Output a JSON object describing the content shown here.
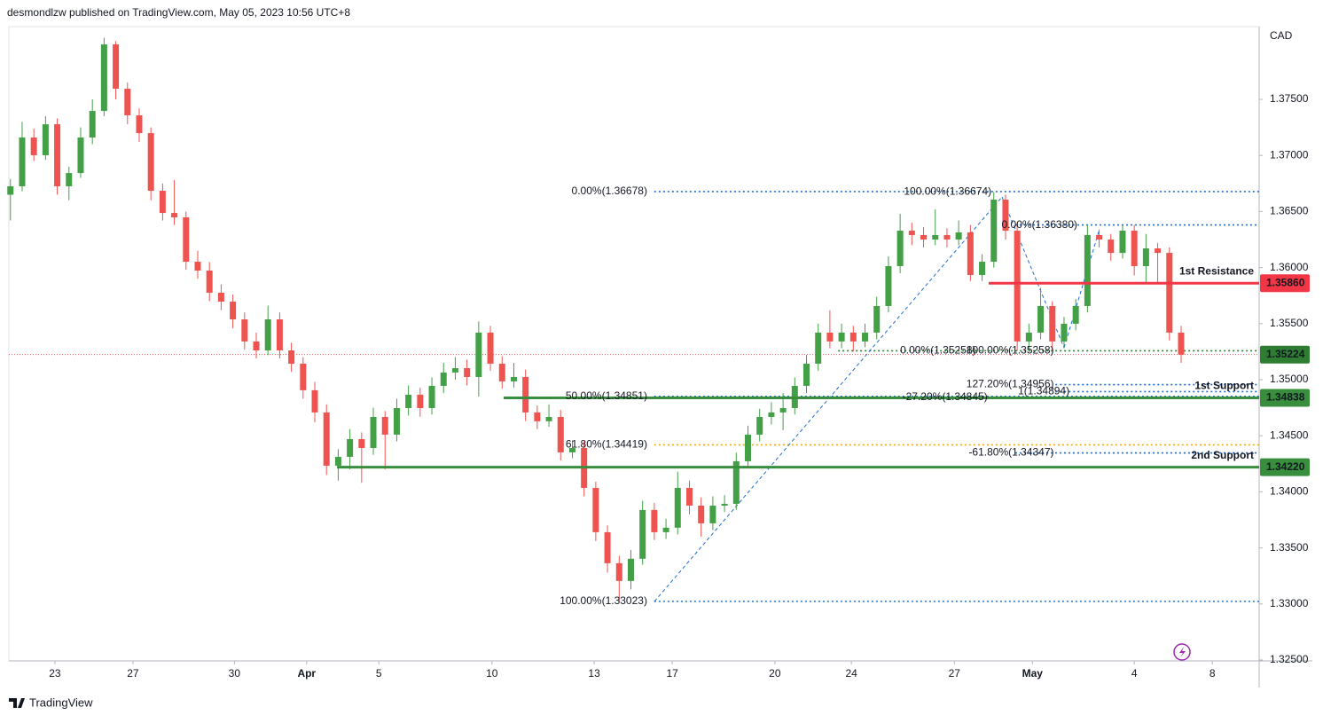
{
  "header": {
    "text": "desmondlzw published on TradingView.com, May 05, 2023 10:56 UTC+8"
  },
  "footer": {
    "brand": "TradingView"
  },
  "chart_data": {
    "type": "candlestick",
    "currency": "CAD",
    "up_color": "#43a047",
    "down_color": "#ef5350",
    "grid": false,
    "xlim": [
      -1.18,
      30.86
    ],
    "xticks": [
      {
        "value": 0,
        "label": "23"
      },
      {
        "value": 2,
        "label": "27"
      },
      {
        "value": 4.6,
        "label": "30"
      },
      {
        "value": 6.45,
        "label": "Apr"
      },
      {
        "value": 8.3,
        "label": "5"
      },
      {
        "value": 11.2,
        "label": "10"
      },
      {
        "value": 13.82,
        "label": "13"
      },
      {
        "value": 15.82,
        "label": "17"
      },
      {
        "value": 18.45,
        "label": "20"
      },
      {
        "value": 20.41,
        "label": "24"
      },
      {
        "value": 23.05,
        "label": "27"
      },
      {
        "value": 25.05,
        "label": "May"
      },
      {
        "value": 27.66,
        "label": "4"
      },
      {
        "value": 29.66,
        "label": "8"
      }
    ],
    "ylim": [
      1.32492,
      1.38149
    ],
    "yticks": [
      {
        "value": 1.325,
        "label": "1.32500"
      },
      {
        "value": 1.33,
        "label": "1.33000"
      },
      {
        "value": 1.335,
        "label": "1.33500"
      },
      {
        "value": 1.34,
        "label": "1.34000"
      },
      {
        "value": 1.345,
        "label": "1.34500"
      },
      {
        "value": 1.35,
        "label": "1.35000"
      },
      {
        "value": 1.355,
        "label": "1.35500"
      },
      {
        "value": 1.36,
        "label": "1.36000"
      },
      {
        "value": 1.365,
        "label": "1.36500"
      },
      {
        "value": 1.37,
        "label": "1.37000"
      },
      {
        "value": 1.375,
        "label": "1.37500"
      }
    ],
    "x": [
      -1.14,
      -0.84,
      -0.54,
      -0.24,
      0.06,
      0.36,
      0.66,
      0.96,
      1.26,
      1.56,
      1.86,
      2.16,
      2.46,
      2.76,
      3.06,
      3.36,
      3.66,
      3.96,
      4.26,
      4.56,
      4.86,
      5.16,
      5.46,
      5.76,
      6.06,
      6.36,
      6.66,
      6.96,
      7.26,
      7.56,
      7.86,
      8.16,
      8.46,
      8.76,
      9.06,
      9.36,
      9.66,
      9.96,
      10.26,
      10.56,
      10.86,
      11.16,
      11.46,
      11.76,
      12.06,
      12.36,
      12.66,
      12.96,
      13.26,
      13.56,
      13.86,
      14.16,
      14.46,
      14.76,
      15.06,
      15.36,
      15.66,
      15.96,
      16.26,
      16.56,
      16.86,
      17.16,
      17.46,
      17.76,
      18.06,
      18.36,
      18.66,
      18.96,
      19.26,
      19.56,
      19.86,
      20.16,
      20.46,
      20.76,
      21.06,
      21.36,
      21.66,
      21.96,
      22.26,
      22.56,
      22.86,
      23.16,
      23.46,
      23.76,
      24.06,
      24.36,
      24.66,
      24.96,
      25.26,
      25.56,
      25.86,
      26.16,
      26.46,
      26.76,
      27.06,
      27.36,
      27.66,
      27.96,
      28.26,
      28.56,
      28.86
    ],
    "candles": [
      [
        1.3665,
        1.3679,
        1.3642,
        1.36725
      ],
      [
        1.36725,
        1.373,
        1.3668,
        1.3716
      ],
      [
        1.3716,
        1.3724,
        1.3695,
        1.37002
      ],
      [
        1.37002,
        1.3735,
        1.3696,
        1.37278
      ],
      [
        1.37278,
        1.3733,
        1.3665,
        1.36725
      ],
      [
        1.36725,
        1.369,
        1.366,
        1.36843
      ],
      [
        1.36843,
        1.3725,
        1.368,
        1.3716
      ],
      [
        1.3716,
        1.375,
        1.371,
        1.37397
      ],
      [
        1.37397,
        1.3805,
        1.3735,
        1.3799
      ],
      [
        1.3799,
        1.3802,
        1.375,
        1.37595
      ],
      [
        1.37595,
        1.3765,
        1.3728,
        1.37358
      ],
      [
        1.37358,
        1.3742,
        1.3712,
        1.37199
      ],
      [
        1.37199,
        1.3725,
        1.366,
        1.36685
      ],
      [
        1.36685,
        1.3675,
        1.3642,
        1.36487
      ],
      [
        1.36487,
        1.3678,
        1.3638,
        1.36448
      ],
      [
        1.36448,
        1.365,
        1.3598,
        1.36052
      ],
      [
        1.36052,
        1.3615,
        1.359,
        1.35973
      ],
      [
        1.35973,
        1.3605,
        1.357,
        1.35776
      ],
      [
        1.35776,
        1.3585,
        1.3562,
        1.35696
      ],
      [
        1.35696,
        1.3576,
        1.3546,
        1.35538
      ],
      [
        1.35538,
        1.356,
        1.3527,
        1.35341
      ],
      [
        1.35341,
        1.3542,
        1.3519,
        1.35261
      ],
      [
        1.35261,
        1.3566,
        1.3522,
        1.35538
      ],
      [
        1.35538,
        1.356,
        1.3519,
        1.35261
      ],
      [
        1.35261,
        1.3533,
        1.3507,
        1.35143
      ],
      [
        1.35143,
        1.352,
        1.3483,
        1.34906
      ],
      [
        1.34906,
        1.3498,
        1.3462,
        1.34708
      ],
      [
        1.34708,
        1.3478,
        1.3415,
        1.34233
      ],
      [
        1.34233,
        1.3438,
        1.341,
        1.34312
      ],
      [
        1.34312,
        1.3456,
        1.342,
        1.3447
      ],
      [
        1.3447,
        1.3453,
        1.3408,
        1.34391
      ],
      [
        1.34391,
        1.3475,
        1.3433,
        1.34668
      ],
      [
        1.34668,
        1.3472,
        1.342,
        1.3451
      ],
      [
        1.3451,
        1.3483,
        1.3445,
        1.34747
      ],
      [
        1.34747,
        1.3495,
        1.3468,
        1.34866
      ],
      [
        1.34866,
        1.3493,
        1.3467,
        1.34747
      ],
      [
        1.34747,
        1.3502,
        1.3469,
        1.34945
      ],
      [
        1.34945,
        1.3515,
        1.3488,
        1.35064
      ],
      [
        1.35064,
        1.352,
        1.35,
        1.35103
      ],
      [
        1.35103,
        1.3518,
        1.3495,
        1.35024
      ],
      [
        1.35024,
        1.3552,
        1.3485,
        1.3542
      ],
      [
        1.3542,
        1.3548,
        1.3508,
        1.35143
      ],
      [
        1.35143,
        1.3521,
        1.3492,
        1.34985
      ],
      [
        1.34985,
        1.3515,
        1.3493,
        1.35024
      ],
      [
        1.35024,
        1.3509,
        1.3463,
        1.34708
      ],
      [
        1.34708,
        1.3477,
        1.3456,
        1.34629
      ],
      [
        1.34629,
        1.3478,
        1.3458,
        1.34668
      ],
      [
        1.34668,
        1.3473,
        1.3428,
        1.34352
      ],
      [
        1.34352,
        1.3446,
        1.343,
        1.34391
      ],
      [
        1.34391,
        1.3445,
        1.3396,
        1.34035
      ],
      [
        1.34035,
        1.3409,
        1.3356,
        1.3364
      ],
      [
        1.3364,
        1.337,
        1.3328,
        1.33363
      ],
      [
        1.33363,
        1.3343,
        1.33023,
        1.33205
      ],
      [
        1.33205,
        1.3348,
        1.3313,
        1.33403
      ],
      [
        1.33403,
        1.3392,
        1.3335,
        1.33838
      ],
      [
        1.33838,
        1.339,
        1.3357,
        1.3364
      ],
      [
        1.3364,
        1.3376,
        1.3358,
        1.3368
      ],
      [
        1.3368,
        1.3418,
        1.3362,
        1.34035
      ],
      [
        1.34035,
        1.341,
        1.338,
        1.33877
      ],
      [
        1.33877,
        1.3395,
        1.336,
        1.33719
      ],
      [
        1.33719,
        1.3396,
        1.3366,
        1.33877
      ],
      [
        1.33877,
        1.3397,
        1.3382,
        1.33893
      ],
      [
        1.33893,
        1.3435,
        1.3384,
        1.34273
      ],
      [
        1.34273,
        1.3459,
        1.3421,
        1.3451
      ],
      [
        1.3451,
        1.3474,
        1.3445,
        1.34668
      ],
      [
        1.34668,
        1.348,
        1.346,
        1.34708
      ],
      [
        1.34708,
        1.3488,
        1.3455,
        1.34747
      ],
      [
        1.34747,
        1.3502,
        1.3469,
        1.34945
      ],
      [
        1.34945,
        1.3522,
        1.3488,
        1.35143
      ],
      [
        1.35143,
        1.355,
        1.3508,
        1.3542
      ],
      [
        1.3542,
        1.3562,
        1.3528,
        1.35341
      ],
      [
        1.35341,
        1.355,
        1.3528,
        1.3542
      ],
      [
        1.3542,
        1.3548,
        1.3525,
        1.35341
      ],
      [
        1.35341,
        1.355,
        1.3529,
        1.3542
      ],
      [
        1.3542,
        1.3574,
        1.3536,
        1.35657
      ],
      [
        1.35657,
        1.361,
        1.356,
        1.36013
      ],
      [
        1.36013,
        1.3648,
        1.3595,
        1.36329
      ],
      [
        1.36329,
        1.364,
        1.362,
        1.3629
      ],
      [
        1.3629,
        1.3636,
        1.3618,
        1.3625
      ],
      [
        1.3625,
        1.3652,
        1.362,
        1.3629
      ],
      [
        1.3629,
        1.3635,
        1.3618,
        1.3625
      ],
      [
        1.3625,
        1.3642,
        1.362,
        1.36314
      ],
      [
        1.36314,
        1.3638,
        1.3588,
        1.35934
      ],
      [
        1.35934,
        1.3612,
        1.3588,
        1.36052
      ],
      [
        1.36052,
        1.36674,
        1.36,
        1.36606
      ],
      [
        1.36606,
        1.3665,
        1.3625,
        1.36329
      ],
      [
        1.36329,
        1.364,
        1.3526,
        1.35341
      ],
      [
        1.35341,
        1.355,
        1.35258,
        1.3542
      ],
      [
        1.3542,
        1.3582,
        1.3536,
        1.35657
      ],
      [
        1.35657,
        1.357,
        1.3526,
        1.35341
      ],
      [
        1.35341,
        1.3556,
        1.3528,
        1.35499
      ],
      [
        1.35499,
        1.3572,
        1.3544,
        1.35657
      ],
      [
        1.35657,
        1.3638,
        1.356,
        1.3629
      ],
      [
        1.3629,
        1.3634,
        1.3618,
        1.3625
      ],
      [
        1.3625,
        1.363,
        1.3606,
        1.36131
      ],
      [
        1.36131,
        1.3638,
        1.3608,
        1.36329
      ],
      [
        1.36329,
        1.3638,
        1.3593,
        1.36013
      ],
      [
        1.36013,
        1.363,
        1.3586,
        1.36171
      ],
      [
        1.36171,
        1.3622,
        1.3586,
        1.36131
      ],
      [
        1.36131,
        1.3618,
        1.3535,
        1.3542
      ],
      [
        1.3542,
        1.3548,
        1.3515,
        1.35224
      ]
    ],
    "last_price": {
      "value": 1.35224,
      "label": "1.35224",
      "color": "#2e7d32",
      "line_color": "#f23645"
    },
    "levels": [
      {
        "name": "1st Resistance",
        "value": 1.3586,
        "label": "1.35860",
        "color": "#f23645",
        "start": 23.93
      },
      {
        "name": "1st Support",
        "value": 1.34838,
        "label": "1.34838",
        "color": "#388e3c",
        "start": 11.5
      },
      {
        "name": "2nd Support",
        "value": 1.3422,
        "label": "1.34220",
        "color": "#388e3c",
        "start": 7.23
      }
    ],
    "fib_lines": [
      {
        "value": 1.36678,
        "start": 15.36,
        "color": "#1e6fd0"
      },
      {
        "value": 1.3638,
        "start": 24.61,
        "color": "#1e6fd0"
      },
      {
        "value": 1.33023,
        "start": 15.36,
        "color": "#1e6fd0"
      },
      {
        "value": 1.34419,
        "start": 15.36,
        "color": "#f2a900"
      },
      {
        "value": 1.34851,
        "start": 15.36,
        "color": "#1e6fd0"
      },
      {
        "value": 1.35258,
        "start": 20.07,
        "color": "#2e7d32"
      },
      {
        "value": 1.34956,
        "start": 25.64,
        "color": "#1e6fd0"
      },
      {
        "value": 1.34894,
        "start": 25.64,
        "color": "#1e6fd0"
      },
      {
        "value": 1.34347,
        "start": 24.61,
        "color": "#1e6fd0"
      }
    ],
    "fib_labels": [
      {
        "text": "0.00%(1.36678)",
        "value": 1.36678,
        "at": 15.18,
        "color": "#1e6fd0"
      },
      {
        "text": "100.00%(1.36674)",
        "value": 1.36674,
        "at": 24.0,
        "color": "#1e6fd0"
      },
      {
        "text": "0.00%(1.36380)",
        "value": 1.3638,
        "at": 26.2,
        "color": "#1e6fd0"
      },
      {
        "text": "100.00%(1.33023)",
        "value": 1.33023,
        "at": 15.18,
        "color": "#1e6fd0"
      },
      {
        "text": "61.80%(1.34419)",
        "value": 1.34419,
        "at": 15.18,
        "color": "#f2a900"
      },
      {
        "text": "50.00%(1.34851)",
        "value": 1.34851,
        "at": 15.18,
        "color": "#1e6fd0"
      },
      {
        "text": "0.00%(1.35258)",
        "value": 1.35258,
        "at": 23.6,
        "color": "#1e6fd0"
      },
      {
        "text": "100.00%(1.35258)",
        "value": 1.35258,
        "at": 25.6,
        "color": "#1e6fd0"
      },
      {
        "text": "127.20%(1.34956)",
        "value": 1.34956,
        "at": 25.6,
        "color": "#1e6fd0"
      },
      {
        "text": "-27.20%(1.34845)",
        "value": 1.34845,
        "at": 23.9,
        "color": "#1e6fd0"
      },
      {
        "text": "1(1.34894)",
        "value": 1.34894,
        "at": 26.0,
        "color": "#1e6fd0"
      },
      {
        "text": "-61.80%(1.34347)",
        "value": 1.34347,
        "at": 25.6,
        "color": "#1e6fd0"
      }
    ]
  }
}
